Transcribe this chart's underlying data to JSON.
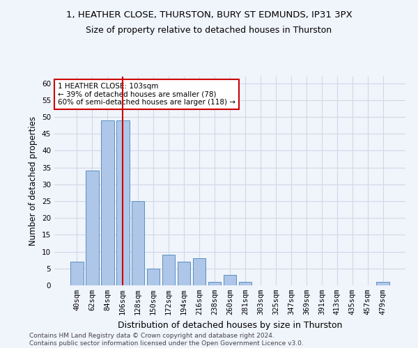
{
  "title": "1, HEATHER CLOSE, THURSTON, BURY ST EDMUNDS, IP31 3PX",
  "subtitle": "Size of property relative to detached houses in Thurston",
  "xlabel": "Distribution of detached houses by size in Thurston",
  "ylabel": "Number of detached properties",
  "categories": [
    "40sqm",
    "62sqm",
    "84sqm",
    "106sqm",
    "128sqm",
    "150sqm",
    "172sqm",
    "194sqm",
    "216sqm",
    "238sqm",
    "260sqm",
    "281sqm",
    "303sqm",
    "325sqm",
    "347sqm",
    "369sqm",
    "391sqm",
    "413sqm",
    "435sqm",
    "457sqm",
    "479sqm"
  ],
  "values": [
    7,
    34,
    49,
    49,
    25,
    5,
    9,
    7,
    8,
    1,
    3,
    1,
    0,
    0,
    0,
    0,
    0,
    0,
    0,
    0,
    1
  ],
  "bar_color": "#aec6e8",
  "bar_edge_color": "#5a8fc0",
  "grid_color": "#d0d8e8",
  "background_color": "#f0f4fb",
  "vline_color": "#cc0000",
  "annotation_text": "1 HEATHER CLOSE: 103sqm\n← 39% of detached houses are smaller (78)\n60% of semi-detached houses are larger (118) →",
  "annotation_box_color": "#ffffff",
  "annotation_box_edge": "#cc0000",
  "ylim": [
    0,
    62
  ],
  "yticks": [
    0,
    5,
    10,
    15,
    20,
    25,
    30,
    35,
    40,
    45,
    50,
    55,
    60
  ],
  "footer": "Contains HM Land Registry data © Crown copyright and database right 2024.\nContains public sector information licensed under the Open Government Licence v3.0.",
  "title_fontsize": 9.5,
  "subtitle_fontsize": 9,
  "xlabel_fontsize": 9,
  "ylabel_fontsize": 8.5,
  "tick_fontsize": 7.5,
  "footer_fontsize": 6.5
}
